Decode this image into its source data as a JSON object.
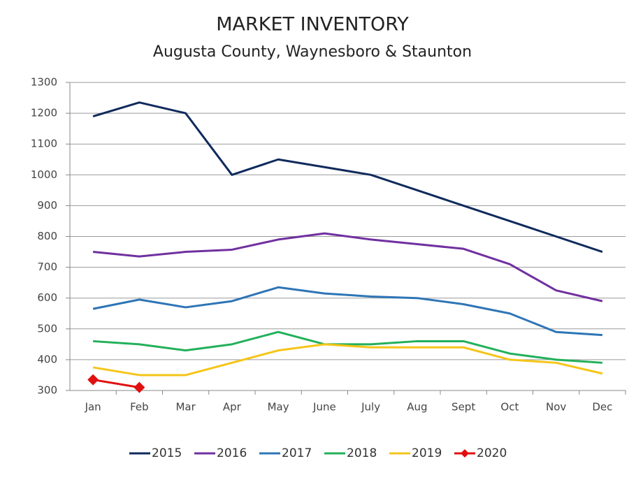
{
  "chart_data": {
    "type": "line",
    "title": "MARKET INVENTORY",
    "subtitle": "Augusta County, Waynesboro & Staunton",
    "categories": [
      "Jan",
      "Feb",
      "Mar",
      "Apr",
      "May",
      "June",
      "July",
      "Aug",
      "Sept",
      "Oct",
      "Nov",
      "Dec"
    ],
    "series": [
      {
        "name": "2015",
        "color": "#0f2a5c",
        "values": [
          1190,
          1235,
          1200,
          1000,
          1050,
          1025,
          1000,
          950,
          900,
          850,
          800,
          750
        ]
      },
      {
        "name": "2016",
        "color": "#7030a0",
        "values": [
          750,
          735,
          750,
          757,
          790,
          810,
          790,
          775,
          760,
          710,
          625,
          590
        ]
      },
      {
        "name": "2017",
        "color": "#2e75b6",
        "values": [
          565,
          595,
          570,
          590,
          635,
          615,
          605,
          600,
          580,
          550,
          490,
          480
        ]
      },
      {
        "name": "2018",
        "color": "#22b05a",
        "values": [
          460,
          450,
          430,
          450,
          490,
          450,
          450,
          460,
          460,
          420,
          400,
          390
        ]
      },
      {
        "name": "2019",
        "color": "#f5c518",
        "values": [
          375,
          350,
          350,
          390,
          430,
          450,
          440,
          440,
          440,
          400,
          390,
          355
        ]
      },
      {
        "name": "2020",
        "color": "#e01010",
        "marker": "diamond",
        "values": [
          335,
          310,
          null,
          null,
          null,
          null,
          null,
          null,
          null,
          null,
          null,
          null
        ]
      }
    ],
    "ylim": [
      300,
      1300
    ],
    "yticks": [
      300,
      400,
      500,
      600,
      700,
      800,
      900,
      1000,
      1100,
      1200,
      1300
    ],
    "grid": true,
    "legend": "bottom"
  }
}
